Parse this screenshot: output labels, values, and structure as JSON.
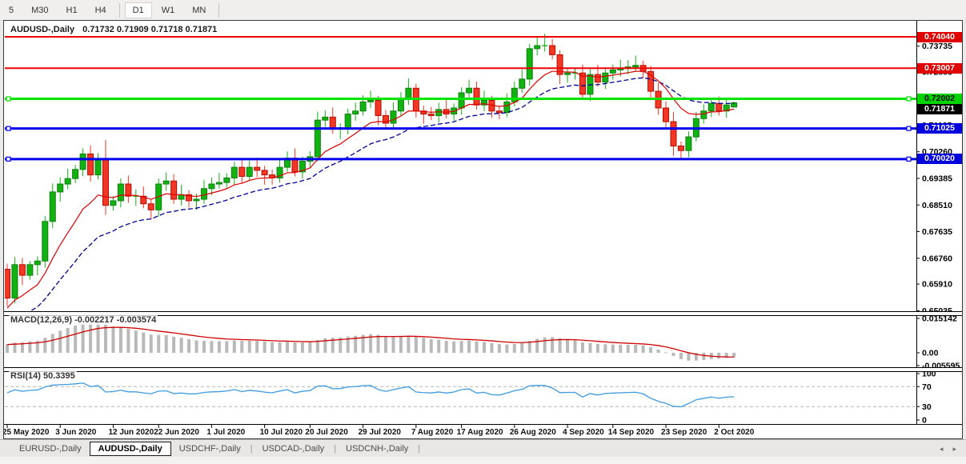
{
  "toolbar": {
    "timeframes": [
      "5",
      "M30",
      "H1",
      "H4",
      "D1",
      "W1",
      "MN"
    ],
    "active": "D1",
    "separators_after": [
      "H4",
      "MN"
    ]
  },
  "window": {
    "title_symbol": "AUDUSD-,Daily",
    "title_ohlc": "0.71732 0.71909 0.71718 0.71871"
  },
  "chart_data": {
    "type": "candlestick",
    "title": "AUDUSD-,Daily",
    "last_bar": {
      "open": 0.71732,
      "high": 0.71909,
      "low": 0.71718,
      "close": 0.71871
    },
    "x_labels": [
      {
        "label": "25 May 2020",
        "index": 0
      },
      {
        "label": "3 Jun 2020",
        "index": 7
      },
      {
        "label": "12 Jun 2020",
        "index": 14
      },
      {
        "label": "22 Jun 2020",
        "index": 20
      },
      {
        "label": "1 Jul 2020",
        "index": 27
      },
      {
        "label": "10 Jul 2020",
        "index": 34
      },
      {
        "label": "20 Jul 2020",
        "index": 40
      },
      {
        "label": "29 Jul 2020",
        "index": 47
      },
      {
        "label": "7 Aug 2020",
        "index": 54
      },
      {
        "label": "17 Aug 2020",
        "index": 60
      },
      {
        "label": "26 Aug 2020",
        "index": 67
      },
      {
        "label": "4 Sep 2020",
        "index": 74
      },
      {
        "label": "14 Sep 2020",
        "index": 80
      },
      {
        "label": "23 Sep 2020",
        "index": 87
      },
      {
        "label": "2 Oct 2020",
        "index": 94
      }
    ],
    "y_ticks": [
      "0.73735",
      "0.72885",
      "0.72010",
      "0.71135",
      "0.70260",
      "0.69385",
      "0.68510",
      "0.67635",
      "0.66760",
      "0.65910",
      "0.65035"
    ],
    "ylim": [
      0.65021,
      0.74513
    ],
    "hlines": [
      {
        "price": 0.7404,
        "label": "0.74040",
        "color": "#ee0000",
        "bg": "#e00000",
        "text": "#ffffff",
        "width": 2,
        "selected": false
      },
      {
        "price": 0.73007,
        "label": "0.73007",
        "color": "#ee0000",
        "bg": "#e00000",
        "text": "#ffffff",
        "width": 2,
        "selected": false
      },
      {
        "price": 0.72002,
        "label": "0.72002",
        "color": "#00e400",
        "bg": "#00d400",
        "text": "#000000",
        "width": 3,
        "selected": true
      },
      {
        "price": 0.71025,
        "label": "0.71025",
        "color": "#0000ee",
        "bg": "#0000dd",
        "text": "#ffffff",
        "width": 3,
        "selected": true
      },
      {
        "price": 0.7002,
        "label": "0.70020",
        "color": "#0000ee",
        "bg": "#0000dd",
        "text": "#ffffff",
        "width": 3,
        "selected": true
      }
    ],
    "current_price": {
      "price": 0.71871,
      "label": "0.71871",
      "bg": "#000000",
      "text": "#ffffff"
    },
    "ma_fast": {
      "period": 10,
      "seed": 0.6505,
      "color": "#dd0000",
      "style": "solid"
    },
    "ma_slow": {
      "period": 21,
      "seed": 0.6445,
      "color": "#000096",
      "style": "dashed"
    },
    "bull_color": "#12b212",
    "bear_color": "#f23724",
    "candles": [
      [
        0.664,
        0.6658,
        0.6518,
        0.6545
      ],
      [
        0.6545,
        0.668,
        0.6528,
        0.6655
      ],
      [
        0.6655,
        0.6677,
        0.6588,
        0.662
      ],
      [
        0.662,
        0.6667,
        0.6605,
        0.6655
      ],
      [
        0.6655,
        0.6682,
        0.662,
        0.6667
      ],
      [
        0.6667,
        0.6815,
        0.6645,
        0.6797
      ],
      [
        0.6797,
        0.6922,
        0.6775,
        0.6894
      ],
      [
        0.6894,
        0.6942,
        0.6862,
        0.692
      ],
      [
        0.692,
        0.697,
        0.6903,
        0.6938
      ],
      [
        0.6938,
        0.6983,
        0.6923,
        0.6968
      ],
      [
        0.6968,
        0.7037,
        0.6946,
        0.7019
      ],
      [
        0.7019,
        0.7047,
        0.6928,
        0.695
      ],
      [
        0.695,
        0.7022,
        0.6935,
        0.7
      ],
      [
        0.7,
        0.7065,
        0.6818,
        0.685
      ],
      [
        0.685,
        0.688,
        0.6833,
        0.6865
      ],
      [
        0.6865,
        0.6938,
        0.6843,
        0.692
      ],
      [
        0.692,
        0.6948,
        0.6858,
        0.688
      ],
      [
        0.688,
        0.6902,
        0.6848,
        0.688
      ],
      [
        0.688,
        0.6912,
        0.684,
        0.6855
      ],
      [
        0.6855,
        0.687,
        0.6803,
        0.6835
      ],
      [
        0.6835,
        0.6938,
        0.6813,
        0.692
      ],
      [
        0.692,
        0.6958,
        0.6898,
        0.693
      ],
      [
        0.693,
        0.6952,
        0.6855,
        0.687
      ],
      [
        0.687,
        0.6917,
        0.685,
        0.6885
      ],
      [
        0.6885,
        0.69,
        0.6843,
        0.6865
      ],
      [
        0.6865,
        0.6888,
        0.6835,
        0.687
      ],
      [
        0.687,
        0.6933,
        0.6855,
        0.6905
      ],
      [
        0.6905,
        0.6942,
        0.6883,
        0.692
      ],
      [
        0.692,
        0.6957,
        0.6905,
        0.6925
      ],
      [
        0.6925,
        0.6955,
        0.6908,
        0.694
      ],
      [
        0.694,
        0.6993,
        0.6918,
        0.6975
      ],
      [
        0.6975,
        0.7003,
        0.6923,
        0.6945
      ],
      [
        0.6945,
        0.6997,
        0.693,
        0.6975
      ],
      [
        0.6975,
        0.7007,
        0.6943,
        0.6965
      ],
      [
        0.6965,
        0.698,
        0.6918,
        0.695
      ],
      [
        0.695,
        0.6968,
        0.6918,
        0.694
      ],
      [
        0.694,
        0.7003,
        0.6925,
        0.6975
      ],
      [
        0.6975,
        0.7027,
        0.696,
        0.7005
      ],
      [
        0.7005,
        0.7037,
        0.6945,
        0.696
      ],
      [
        0.696,
        0.701,
        0.6938,
        0.6995
      ],
      [
        0.6995,
        0.7028,
        0.6973,
        0.701
      ],
      [
        0.701,
        0.7158,
        0.6995,
        0.713
      ],
      [
        0.713,
        0.7162,
        0.7108,
        0.714
      ],
      [
        0.714,
        0.7172,
        0.7085,
        0.71
      ],
      [
        0.71,
        0.712,
        0.7068,
        0.7105
      ],
      [
        0.7105,
        0.7168,
        0.7083,
        0.715
      ],
      [
        0.715,
        0.7188,
        0.7128,
        0.716
      ],
      [
        0.716,
        0.7212,
        0.7145,
        0.719
      ],
      [
        0.719,
        0.7227,
        0.717,
        0.7195
      ],
      [
        0.7195,
        0.721,
        0.7113,
        0.7145
      ],
      [
        0.7145,
        0.7163,
        0.7098,
        0.712
      ],
      [
        0.712,
        0.7188,
        0.7105,
        0.716
      ],
      [
        0.716,
        0.7222,
        0.7145,
        0.72
      ],
      [
        0.72,
        0.7267,
        0.718,
        0.7235
      ],
      [
        0.7235,
        0.725,
        0.7138,
        0.716
      ],
      [
        0.716,
        0.7178,
        0.7118,
        0.715
      ],
      [
        0.715,
        0.7173,
        0.713,
        0.7145
      ],
      [
        0.7145,
        0.7187,
        0.7123,
        0.7165
      ],
      [
        0.7165,
        0.7197,
        0.7135,
        0.715
      ],
      [
        0.715,
        0.7185,
        0.7128,
        0.717
      ],
      [
        0.717,
        0.7238,
        0.7148,
        0.722
      ],
      [
        0.722,
        0.7263,
        0.7198,
        0.7235
      ],
      [
        0.7235,
        0.7257,
        0.7165,
        0.718
      ],
      [
        0.718,
        0.7227,
        0.716,
        0.7195
      ],
      [
        0.7195,
        0.721,
        0.7138,
        0.716
      ],
      [
        0.716,
        0.7178,
        0.7133,
        0.7155
      ],
      [
        0.7155,
        0.7218,
        0.714,
        0.719
      ],
      [
        0.719,
        0.7257,
        0.7175,
        0.7235
      ],
      [
        0.7235,
        0.7297,
        0.722,
        0.7265
      ],
      [
        0.7265,
        0.738,
        0.7243,
        0.7365
      ],
      [
        0.7365,
        0.7403,
        0.7343,
        0.7375
      ],
      [
        0.7375,
        0.7414,
        0.7355,
        0.7375
      ],
      [
        0.7375,
        0.7397,
        0.733,
        0.7345
      ],
      [
        0.7345,
        0.736,
        0.7248,
        0.728
      ],
      [
        0.728,
        0.73,
        0.7253,
        0.7285
      ],
      [
        0.7285,
        0.7303,
        0.7263,
        0.7285
      ],
      [
        0.7285,
        0.7313,
        0.72,
        0.7215
      ],
      [
        0.7215,
        0.7302,
        0.7193,
        0.728
      ],
      [
        0.728,
        0.7312,
        0.724,
        0.7255
      ],
      [
        0.7255,
        0.73,
        0.7233,
        0.7285
      ],
      [
        0.7285,
        0.7313,
        0.7263,
        0.7295
      ],
      [
        0.7295,
        0.7328,
        0.7273,
        0.73
      ],
      [
        0.73,
        0.7327,
        0.728,
        0.7305
      ],
      [
        0.7305,
        0.7342,
        0.729,
        0.731
      ],
      [
        0.731,
        0.7325,
        0.7268,
        0.729
      ],
      [
        0.729,
        0.7308,
        0.7203,
        0.7225
      ],
      [
        0.7225,
        0.7253,
        0.7148,
        0.717
      ],
      [
        0.717,
        0.7192,
        0.7103,
        0.7125
      ],
      [
        0.7125,
        0.7157,
        0.7013,
        0.7045
      ],
      [
        0.7045,
        0.706,
        0.7006,
        0.703
      ],
      [
        0.703,
        0.7093,
        0.7008,
        0.7075
      ],
      [
        0.7075,
        0.7157,
        0.706,
        0.7135
      ],
      [
        0.7135,
        0.7182,
        0.7118,
        0.716
      ],
      [
        0.716,
        0.7203,
        0.714,
        0.7185
      ],
      [
        0.7185,
        0.7208,
        0.7145,
        0.716
      ],
      [
        0.716,
        0.7198,
        0.7138,
        0.718
      ],
      [
        0.71732,
        0.71909,
        0.71718,
        0.71871
      ]
    ],
    "macd": {
      "name": "MACD(12,26,9)",
      "value_main": "-0.002217",
      "value_signal": "-0.003574",
      "params": {
        "fast": 12,
        "slow": 26,
        "signal": 9
      },
      "hist_color": "#b9b9b9",
      "signal_color": "#d00000",
      "y_ticks": [
        "0.015142",
        "0.00",
        "-0.005595"
      ],
      "tick_values": [
        0.015142,
        0.0,
        -0.005595
      ]
    },
    "rsi": {
      "name": "RSI(14)",
      "value": "50.3395",
      "period": 14,
      "color": "#3e9bdf",
      "levels": [
        100,
        70,
        30,
        0
      ],
      "dashed_levels": [
        70,
        30
      ],
      "level_color": "#b5b5b5"
    }
  },
  "tabs": {
    "items": [
      "EURUSD-,Daily",
      "AUDUSD-,Daily",
      "USDCHF-,Daily",
      "USDCAD-,Daily",
      "USDCNH-,Daily"
    ],
    "active_index": 1
  },
  "scrollbar": {
    "left_arrow": "◂",
    "right_arrow": "▸"
  }
}
